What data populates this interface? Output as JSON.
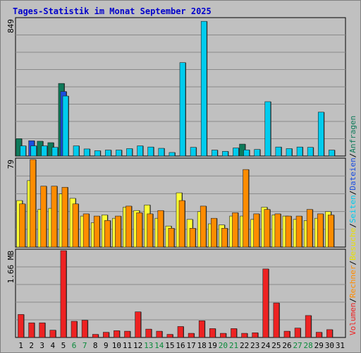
{
  "chart_data": {
    "type": "bar",
    "title": "Tages-Statistik im Monat September 2025",
    "categories": [
      "1",
      "2",
      "3",
      "4",
      "5",
      "6",
      "7",
      "8",
      "9",
      "10",
      "11",
      "12",
      "13",
      "14",
      "15",
      "16",
      "17",
      "18",
      "19",
      "20",
      "21",
      "22",
      "23",
      "24",
      "25",
      "26",
      "27",
      "28",
      "29",
      "30",
      "31"
    ],
    "weekend_days": [
      "6",
      "7",
      "13",
      "14",
      "20",
      "21",
      "27",
      "28"
    ],
    "panels": [
      {
        "id": "top",
        "axis_label": "849",
        "max": 849,
        "series": [
          {
            "name": "Anfragen",
            "color": "#0e7a5a",
            "values": [
              108,
              0,
              92,
              83,
              450,
              0,
              0,
              0,
              0,
              0,
              0,
              0,
              0,
              0,
              0,
              0,
              0,
              0,
              0,
              0,
              0,
              74,
              0,
              0,
              0,
              0,
              0,
              0,
              0,
              0,
              0
            ]
          },
          {
            "name": "Dateien",
            "color": "#1a4de0",
            "values": [
              0,
              95,
              0,
              0,
              400,
              0,
              0,
              0,
              0,
              0,
              0,
              0,
              0,
              0,
              0,
              0,
              0,
              0,
              0,
              0,
              0,
              0,
              0,
              0,
              0,
              0,
              0,
              0,
              0,
              0,
              0
            ]
          },
          {
            "name": "Seiten",
            "color": "#00ccee",
            "values": [
              63,
              63,
              63,
              54,
              372,
              63,
              44,
              33,
              37,
              37,
              46,
              63,
              56,
              48,
              22,
              579,
              54,
              835,
              37,
              29,
              50,
              38,
              41,
              337,
              56,
              46,
              56,
              54,
              272,
              37,
              0
            ]
          }
        ]
      },
      {
        "id": "mid",
        "axis_label": "79",
        "max": 79,
        "series": [
          {
            "name": "Besuche",
            "color": "#ffff33",
            "values": [
              42,
              60,
              34,
              35,
              48,
              44,
              28,
              22,
              29,
              26,
              36,
              33,
              38,
              26,
              19,
              49,
              25,
              32,
              21,
              20,
              28,
              28,
              25,
              36,
              29,
              28,
              25,
              24,
              26,
              32,
              0
            ]
          },
          {
            "name": "Rechner",
            "color": "#ff8c00",
            "values": [
              39,
              79,
              55,
              55,
              54,
              39,
              30,
              28,
              24,
              28,
              37,
              31,
              30,
              33,
              17,
              42,
              17,
              37,
              26,
              17,
              31,
              70,
              30,
              34,
              30,
              28,
              28,
              34,
              30,
              29,
              0
            ]
          }
        ]
      },
      {
        "id": "bot",
        "axis_label": "1.66 MB",
        "max": 1.66,
        "series": [
          {
            "name": "Volumen",
            "color": "#ee2222",
            "values": [
              0.44,
              0.28,
              0.28,
              0.14,
              1.66,
              0.31,
              0.33,
              0.06,
              0.1,
              0.13,
              0.12,
              0.49,
              0.16,
              0.12,
              0.06,
              0.21,
              0.08,
              0.32,
              0.17,
              0.08,
              0.17,
              0.08,
              0.09,
              1.31,
              0.66,
              0.12,
              0.18,
              0.42,
              0.1,
              0.15,
              0.0
            ]
          }
        ]
      }
    ],
    "legend": [
      {
        "text": "Volumen",
        "color": "#ee2222"
      },
      {
        "text": "/",
        "color": "#000000"
      },
      {
        "text": "Rechner",
        "color": "#ff8c00"
      },
      {
        "text": "/",
        "color": "#000000"
      },
      {
        "text": "Besuche",
        "color": "#e8e000"
      },
      {
        "text": "/",
        "color": "#000000"
      },
      {
        "text": "Seiten",
        "color": "#00ccee"
      },
      {
        "text": "/",
        "color": "#000000"
      },
      {
        "text": "Dateien",
        "color": "#1a4de0"
      },
      {
        "text": "/",
        "color": "#000000"
      },
      {
        "text": "Anfragen",
        "color": "#0e7a5a"
      }
    ],
    "grid": true
  }
}
